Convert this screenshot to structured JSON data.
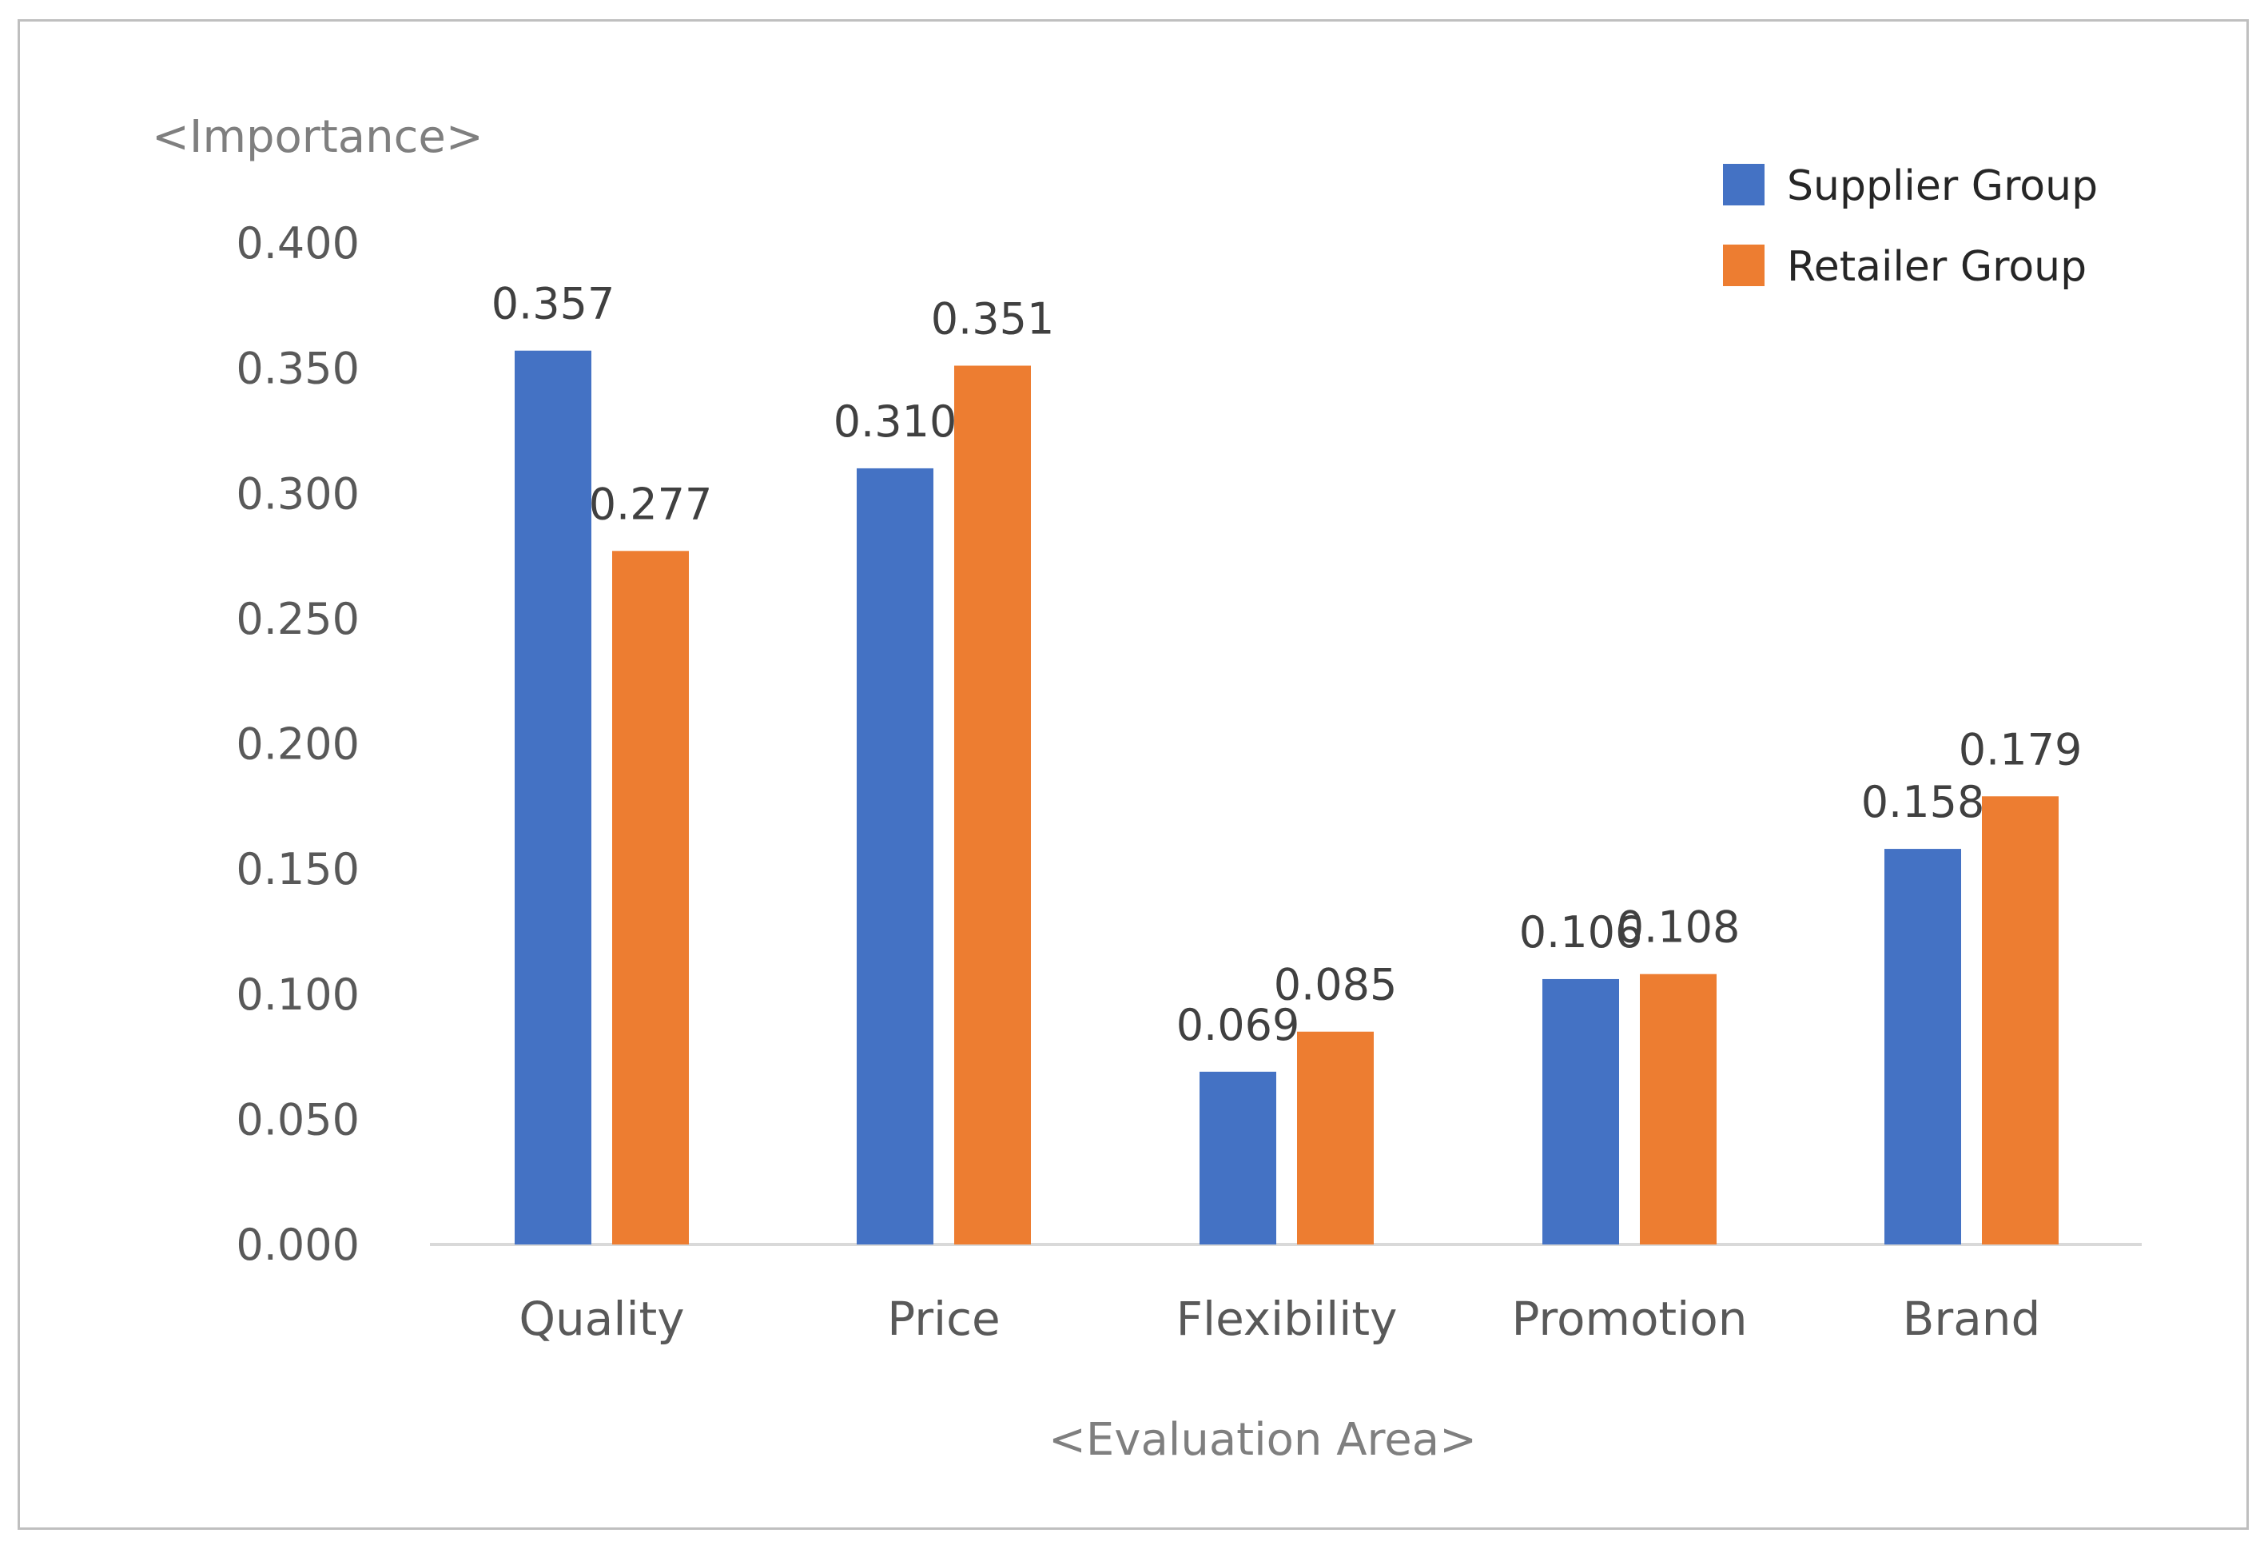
{
  "chart_data": {
    "type": "bar",
    "title": "",
    "ylabel": "<Importance>",
    "xlabel": "<Evaluation Area>",
    "categories": [
      "Quality",
      "Price",
      "Flexibility",
      "Promotion",
      "Brand"
    ],
    "series": [
      {
        "name": "Supplier Group",
        "color": "#4472C4",
        "values": [
          0.357,
          0.31,
          0.069,
          0.106,
          0.158
        ],
        "labels": [
          "0.357",
          "0.310",
          "0.069",
          "0.106",
          "0.158"
        ]
      },
      {
        "name": "Retailer Group",
        "color": "#ED7D31",
        "values": [
          0.277,
          0.351,
          0.085,
          0.108,
          0.179
        ],
        "labels": [
          "0.277",
          "0.351",
          "0.085",
          "0.108",
          "0.179"
        ]
      }
    ],
    "ylim": [
      0,
      0.4
    ],
    "yticks": [
      0.0,
      0.05,
      0.1,
      0.15,
      0.2,
      0.25,
      0.3,
      0.35,
      0.4
    ],
    "ytick_labels": [
      "0.000",
      "0.050",
      "0.100",
      "0.150",
      "0.200",
      "0.250",
      "0.300",
      "0.350",
      "0.400"
    ],
    "grid": false,
    "legend_position": "top-right"
  }
}
